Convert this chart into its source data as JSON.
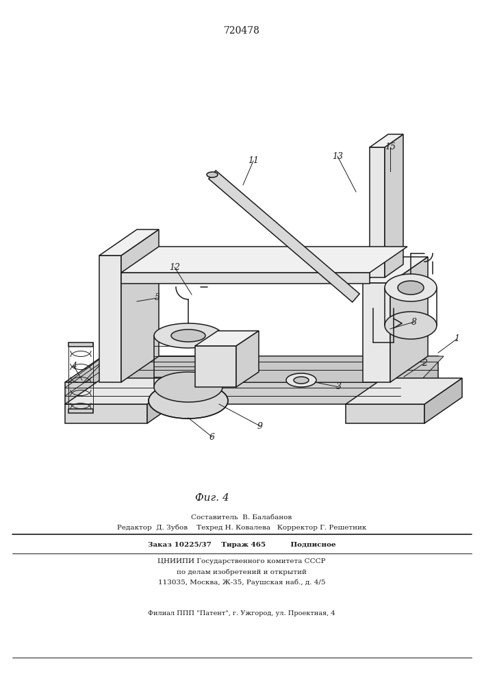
{
  "patent_number": "720478",
  "fig_label": "Фиг. 4",
  "bg_color": "#ffffff",
  "line_color": "#1a1a1a",
  "text_color": "#1a1a1a",
  "footer_line1": "Составитель  В. Балабанов",
  "footer_line2": "Редактор  Д. Зубов    Техред Н. Ковалева   Корректор Г. Решетник",
  "footer_line3": "Заказ 10225/37    Тираж 465          Подписное",
  "footer_line4": "ЦНИИПИ Государственного комитета СССР",
  "footer_line5": "по делам изобретений и открытий",
  "footer_line6": "113035, Москва, Ж-35, Раушская наб., д. 4/5",
  "footer_line7": "Филиал ППП \"Патент\", г. Ужгород, ул. Проектная, 4"
}
